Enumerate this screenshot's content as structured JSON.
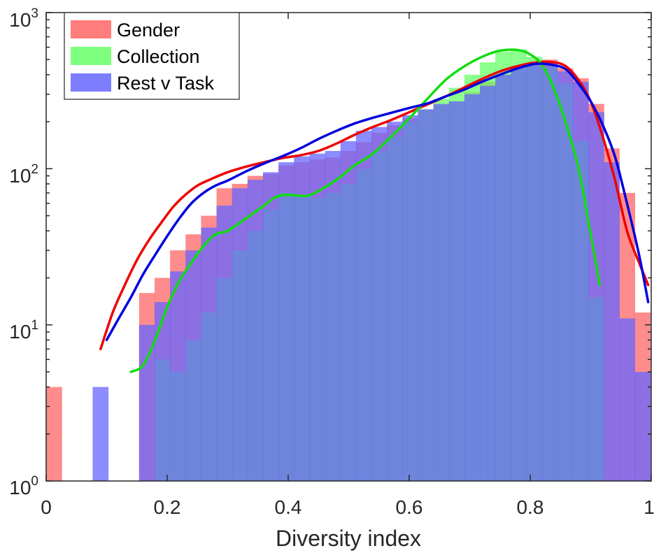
{
  "chart_data": {
    "type": "histogram",
    "title": "",
    "xlabel": "Diversity index",
    "ylabel": "",
    "xlim": [
      0,
      1
    ],
    "ylim": [
      1,
      1000
    ],
    "yscale": "log",
    "grid": false,
    "legend_location": "top-left",
    "x_ticks": [
      0,
      0.2,
      0.4,
      0.6,
      0.8,
      1
    ],
    "x_tick_labels": [
      "0",
      "0.2",
      "0.4",
      "0.6",
      "0.8",
      "1"
    ],
    "y_ticks": [
      1,
      10,
      100,
      1000
    ],
    "y_tick_labels": [
      {
        "base": "10",
        "exp": "0"
      },
      {
        "base": "10",
        "exp": "1"
      },
      {
        "base": "10",
        "exp": "2"
      },
      {
        "base": "10",
        "exp": "3"
      }
    ],
    "bins": {
      "start": 0,
      "width": 0.0256,
      "count": 39
    },
    "series": [
      {
        "name": "Gender",
        "color": "#ff6666",
        "curve_color": "#ee0000",
        "values": [
          4,
          0,
          0,
          0,
          0,
          0,
          16,
          20,
          30,
          38,
          50,
          75,
          80,
          90,
          93,
          105,
          110,
          115,
          118,
          130,
          148,
          170,
          190,
          210,
          240,
          255,
          270,
          310,
          360,
          400,
          430,
          460,
          500,
          440,
          380,
          260,
          135,
          70,
          12
        ],
        "curve": [
          [
            0.09,
            7
          ],
          [
            0.11,
            12
          ],
          [
            0.13,
            18
          ],
          [
            0.15,
            26
          ],
          [
            0.17,
            35
          ],
          [
            0.19,
            45
          ],
          [
            0.21,
            57
          ],
          [
            0.23,
            68
          ],
          [
            0.25,
            78
          ],
          [
            0.27,
            85
          ],
          [
            0.3,
            95
          ],
          [
            0.33,
            103
          ],
          [
            0.36,
            110
          ],
          [
            0.39,
            117
          ],
          [
            0.42,
            122
          ],
          [
            0.45,
            130
          ],
          [
            0.48,
            145
          ],
          [
            0.51,
            165
          ],
          [
            0.54,
            185
          ],
          [
            0.57,
            205
          ],
          [
            0.6,
            230
          ],
          [
            0.63,
            258
          ],
          [
            0.66,
            290
          ],
          [
            0.69,
            330
          ],
          [
            0.72,
            375
          ],
          [
            0.75,
            420
          ],
          [
            0.78,
            455
          ],
          [
            0.81,
            480
          ],
          [
            0.84,
            480
          ],
          [
            0.86,
            450
          ],
          [
            0.88,
            370
          ],
          [
            0.9,
            270
          ],
          [
            0.92,
            160
          ],
          [
            0.94,
            85
          ],
          [
            0.96,
            40
          ],
          [
            0.98,
            25
          ],
          [
            0.995,
            18
          ]
        ]
      },
      {
        "name": "Collection",
        "color": "#66ff66",
        "curve_color": "#11dd11",
        "values": [
          0,
          0,
          0,
          0,
          0,
          0,
          0,
          6,
          5,
          8,
          12,
          20,
          30,
          40,
          55,
          70,
          68,
          65,
          70,
          80,
          100,
          130,
          160,
          200,
          240,
          280,
          330,
          400,
          480,
          560,
          580,
          520,
          450,
          350,
          150,
          15,
          0,
          0,
          0
        ],
        "curve": [
          [
            0.14,
            5
          ],
          [
            0.16,
            5.5
          ],
          [
            0.18,
            8
          ],
          [
            0.2,
            13
          ],
          [
            0.22,
            19
          ],
          [
            0.24,
            25
          ],
          [
            0.26,
            32
          ],
          [
            0.28,
            38
          ],
          [
            0.3,
            40
          ],
          [
            0.33,
            48
          ],
          [
            0.36,
            58
          ],
          [
            0.38,
            66
          ],
          [
            0.4,
            68
          ],
          [
            0.43,
            67
          ],
          [
            0.45,
            72
          ],
          [
            0.48,
            85
          ],
          [
            0.51,
            105
          ],
          [
            0.54,
            125
          ],
          [
            0.57,
            160
          ],
          [
            0.6,
            210
          ],
          [
            0.63,
            280
          ],
          [
            0.66,
            370
          ],
          [
            0.69,
            450
          ],
          [
            0.72,
            520
          ],
          [
            0.75,
            570
          ],
          [
            0.78,
            575
          ],
          [
            0.8,
            540
          ],
          [
            0.82,
            460
          ],
          [
            0.84,
            320
          ],
          [
            0.86,
            190
          ],
          [
            0.88,
            100
          ],
          [
            0.9,
            38
          ],
          [
            0.915,
            18
          ]
        ]
      },
      {
        "name": "Rest v Task",
        "color": "#6666ff",
        "curve_color": "#0000dd",
        "values": [
          0,
          0,
          0,
          4,
          0,
          0,
          10,
          14,
          22,
          30,
          42,
          58,
          75,
          85,
          95,
          110,
          120,
          125,
          130,
          150,
          175,
          185,
          200,
          220,
          240,
          260,
          270,
          300,
          340,
          400,
          450,
          470,
          480,
          420,
          360,
          230,
          110,
          11,
          5
        ],
        "curve": [
          [
            0.1,
            8
          ],
          [
            0.12,
            11
          ],
          [
            0.14,
            15
          ],
          [
            0.16,
            21
          ],
          [
            0.18,
            28
          ],
          [
            0.2,
            37
          ],
          [
            0.22,
            48
          ],
          [
            0.24,
            60
          ],
          [
            0.26,
            70
          ],
          [
            0.28,
            78
          ],
          [
            0.3,
            84
          ],
          [
            0.33,
            96
          ],
          [
            0.36,
            108
          ],
          [
            0.39,
            120
          ],
          [
            0.42,
            135
          ],
          [
            0.45,
            155
          ],
          [
            0.48,
            175
          ],
          [
            0.51,
            195
          ],
          [
            0.54,
            212
          ],
          [
            0.57,
            228
          ],
          [
            0.6,
            245
          ],
          [
            0.63,
            262
          ],
          [
            0.66,
            290
          ],
          [
            0.69,
            320
          ],
          [
            0.72,
            360
          ],
          [
            0.75,
            400
          ],
          [
            0.78,
            440
          ],
          [
            0.81,
            470
          ],
          [
            0.84,
            460
          ],
          [
            0.86,
            430
          ],
          [
            0.88,
            350
          ],
          [
            0.9,
            270
          ],
          [
            0.92,
            190
          ],
          [
            0.94,
            120
          ],
          [
            0.96,
            60
          ],
          [
            0.98,
            28
          ],
          [
            0.995,
            14
          ]
        ]
      }
    ]
  }
}
